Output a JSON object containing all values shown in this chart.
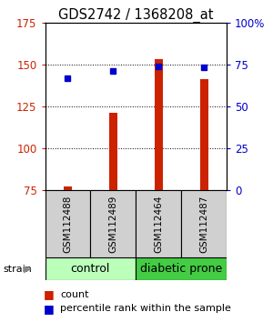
{
  "title": "GDS2742 / 1368208_at",
  "samples": [
    "GSM112488",
    "GSM112489",
    "GSM112464",
    "GSM112487"
  ],
  "counts": [
    77,
    121,
    153,
    141
  ],
  "percentiles": [
    67,
    71,
    74,
    73
  ],
  "ylim_left": [
    75,
    175
  ],
  "ylim_right": [
    0,
    100
  ],
  "yticks_left": [
    75,
    100,
    125,
    150,
    175
  ],
  "yticks_right": [
    0,
    25,
    50,
    75,
    100
  ],
  "ytick_labels_right": [
    "0",
    "25",
    "50",
    "75",
    "100%"
  ],
  "bar_color": "#cc2200",
  "marker_color": "#0000cc",
  "groups": [
    {
      "label": "control",
      "indices": [
        0,
        1
      ],
      "color": "#bbffbb"
    },
    {
      "label": "diabetic prone",
      "indices": [
        2,
        3
      ],
      "color": "#44cc44"
    }
  ],
  "group_label": "strain",
  "legend_count_label": "count",
  "legend_pct_label": "percentile rank within the sample",
  "bar_width": 0.18,
  "sample_box_color": "#d0d0d0",
  "tick_color_left": "#cc2200",
  "tick_color_right": "#0000cc",
  "title_fontsize": 10.5,
  "tick_fontsize": 8.5,
  "sample_fontsize": 7.5,
  "group_fontsize": 9,
  "legend_fontsize": 8
}
